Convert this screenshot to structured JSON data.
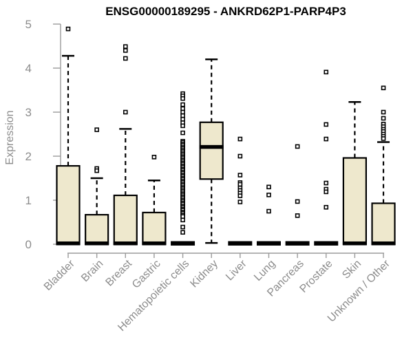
{
  "chart_data": {
    "type": "boxplot",
    "title": "ENSG00000189295 - ANKRD62P1-PARP4P3",
    "ylabel": "Expression",
    "xlabel": "",
    "ylim": [
      0,
      5
    ],
    "yticks": [
      0,
      1,
      2,
      3,
      4,
      5
    ],
    "grid": false,
    "legend": "none",
    "colors": {
      "box_fill": "#EEE8CD",
      "box_stroke": "#000000",
      "median": "#000000",
      "whisker": "#000000",
      "outlier_stroke": "#000000",
      "outlier_fill": "#ffffff",
      "axis_line": "#9A9A9A",
      "tick_text": "#8C8C8C",
      "title_text": "#000000",
      "background": "#ffffff"
    },
    "categories": [
      "Bladder",
      "Brain",
      "Breast",
      "Gastric",
      "Hematopoietic cells",
      "Kidney",
      "Liver",
      "Lung",
      "Pancreas",
      "Prostate",
      "Skin",
      "Unknown / Other"
    ],
    "series": [
      {
        "name": "Bladder",
        "whisker_low": 0,
        "q1": 0,
        "median": 0.02,
        "q3": 1.78,
        "whisker_high": 4.28,
        "outliers": [
          4.89
        ]
      },
      {
        "name": "Brain",
        "whisker_low": 0,
        "q1": 0,
        "median": 0.02,
        "q3": 0.67,
        "whisker_high": 1.5,
        "outliers": [
          2.6,
          1.72,
          1.67
        ]
      },
      {
        "name": "Breast",
        "whisker_low": 0,
        "q1": 0,
        "median": 0.02,
        "q3": 1.11,
        "whisker_high": 2.62,
        "outliers": [
          4.49,
          4.4,
          4.22,
          3.0
        ]
      },
      {
        "name": "Gastric",
        "whisker_low": 0,
        "q1": 0,
        "median": 0.02,
        "q3": 0.72,
        "whisker_high": 1.45,
        "outliers": [
          1.98
        ]
      },
      {
        "name": "Hematopoietic cells",
        "whisker_low": 0,
        "q1": 0,
        "median": 0.02,
        "q3": 0,
        "whisker_high": 0,
        "outliers": [
          3.42,
          3.37,
          3.31,
          3.17,
          3.08,
          3.0,
          2.92,
          2.84,
          2.76,
          2.69,
          2.53,
          2.34,
          2.31,
          2.27,
          2.24,
          2.2,
          2.17,
          2.13,
          2.1,
          2.06,
          2.03,
          1.99,
          1.96,
          1.92,
          1.89,
          1.85,
          1.82,
          1.78,
          1.75,
          1.71,
          1.68,
          1.64,
          1.61,
          1.57,
          1.54,
          1.5,
          1.47,
          1.43,
          1.4,
          1.36,
          1.33,
          1.29,
          1.26,
          1.22,
          1.19,
          1.15,
          1.12,
          1.08,
          1.05,
          1.01,
          0.98,
          0.94,
          0.91,
          0.87,
          0.84,
          0.8,
          0.77,
          0.73,
          0.7,
          0.66,
          0.63,
          0.55,
          0.39,
          0.27
        ]
      },
      {
        "name": "Kidney",
        "whisker_low": 0.03,
        "q1": 1.48,
        "median": 2.21,
        "q3": 2.77,
        "whisker_high": 4.2,
        "outliers": []
      },
      {
        "name": "Liver",
        "whisker_low": 0,
        "q1": 0,
        "median": 0.02,
        "q3": 0,
        "whisker_high": 0,
        "outliers": [
          2.39,
          2.0,
          1.57,
          1.4,
          1.36,
          1.28,
          1.22,
          1.16,
          1.1,
          0.96
        ]
      },
      {
        "name": "Lung",
        "whisker_low": 0,
        "q1": 0,
        "median": 0.02,
        "q3": 0,
        "whisker_high": 0,
        "outliers": [
          1.3,
          1.12,
          0.75
        ]
      },
      {
        "name": "Pancreas",
        "whisker_low": 0,
        "q1": 0,
        "median": 0.02,
        "q3": 0,
        "whisker_high": 0,
        "outliers": [
          2.22,
          0.97,
          0.65
        ]
      },
      {
        "name": "Prostate",
        "whisker_low": 0,
        "q1": 0,
        "median": 0.02,
        "q3": 0,
        "whisker_high": 0,
        "outliers": [
          3.91,
          2.72,
          2.39,
          1.39,
          1.25,
          1.19,
          0.84
        ]
      },
      {
        "name": "Skin",
        "whisker_low": 0,
        "q1": 0,
        "median": 0.02,
        "q3": 1.96,
        "whisker_high": 3.23,
        "outliers": []
      },
      {
        "name": "Unknown / Other",
        "whisker_low": 0,
        "q1": 0,
        "median": 0.02,
        "q3": 0.93,
        "whisker_high": 2.32,
        "outliers": [
          3.55,
          3.0,
          2.86,
          2.73,
          2.67,
          2.61,
          2.56,
          2.5,
          2.45,
          2.4
        ]
      }
    ]
  }
}
